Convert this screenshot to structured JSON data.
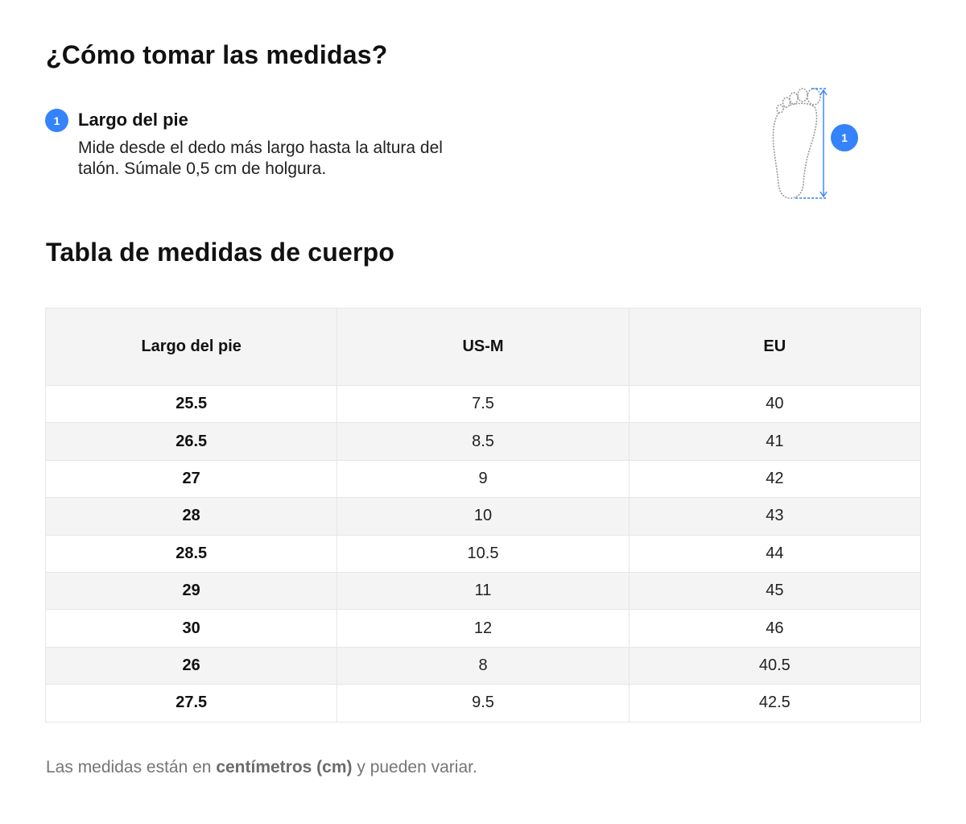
{
  "title": "¿Cómo tomar las medidas?",
  "step": {
    "number": "1",
    "title": "Largo del pie",
    "description": "Mide desde el dedo más largo hasta la altura del talón. Súmale 0,5 cm de holgura."
  },
  "illustration": {
    "icon": "foot-length-icon",
    "badge": "1",
    "accent_color": "#3483fa"
  },
  "table_title": "Tabla de medidas de cuerpo",
  "table": {
    "headers": [
      "Largo del pie",
      "US-M",
      "EU"
    ],
    "rows": [
      [
        "25.5",
        "7.5",
        "40"
      ],
      [
        "26.5",
        "8.5",
        "41"
      ],
      [
        "27",
        "9",
        "42"
      ],
      [
        "28",
        "10",
        "43"
      ],
      [
        "28.5",
        "10.5",
        "44"
      ],
      [
        "29",
        "11",
        "45"
      ],
      [
        "30",
        "12",
        "46"
      ],
      [
        "26",
        "8",
        "40.5"
      ],
      [
        "27.5",
        "9.5",
        "42.5"
      ]
    ]
  },
  "note": {
    "prefix": "Las medidas están en ",
    "bold": "centímetros (cm)",
    "suffix": " y pueden variar."
  }
}
